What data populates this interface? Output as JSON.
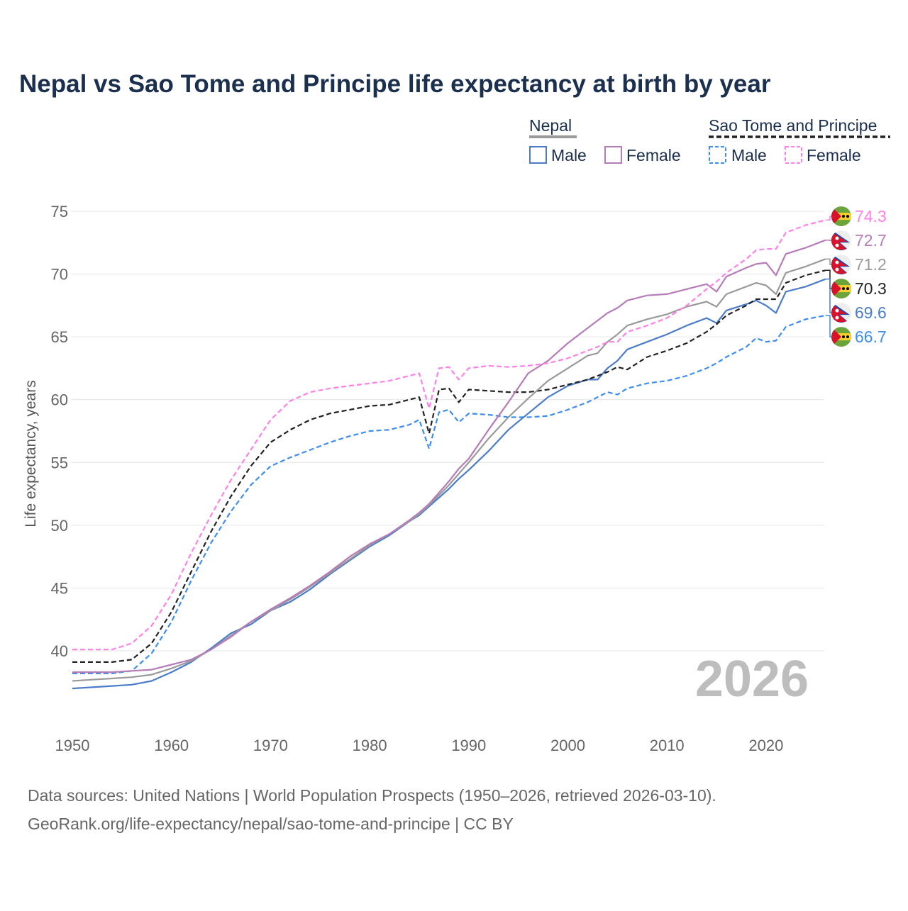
{
  "chart_data": {
    "type": "line",
    "title": "Nepal vs Sao Tome and Principe life expectancy at birth by year",
    "ylabel": "Life expectancy, years",
    "xlabel": "",
    "xlim": [
      1950,
      2026
    ],
    "ylim": [
      35,
      77
    ],
    "x_ticks": [
      1950,
      1960,
      1970,
      1980,
      1990,
      2000,
      2010,
      2020
    ],
    "y_ticks": [
      40,
      45,
      50,
      55,
      60,
      65,
      70,
      75
    ],
    "grid": true,
    "watermark_year": "2026",
    "legend": {
      "placement": "top-right",
      "groups": [
        {
          "name": "Nepal",
          "items": [
            "Male",
            "Female"
          ]
        },
        {
          "name": "Sao Tome and Principe",
          "items": [
            "Male",
            "Female"
          ]
        }
      ]
    },
    "x": [
      1950,
      1952,
      1954,
      1956,
      1958,
      1960,
      1962,
      1964,
      1966,
      1968,
      1970,
      1972,
      1974,
      1976,
      1978,
      1980,
      1982,
      1984,
      1985,
      1986,
      1987,
      1988,
      1989,
      1990,
      1992,
      1994,
      1996,
      1998,
      2000,
      2002,
      2003,
      2004,
      2005,
      2006,
      2008,
      2010,
      2012,
      2014,
      2015,
      2016,
      2018,
      2019,
      2020,
      2021,
      2022,
      2024,
      2026
    ],
    "series": [
      {
        "name": "Sao Tome and Principe Female",
        "country": "stp",
        "color": "#ff80e8",
        "dashed": true,
        "end_label": "74.3",
        "values": [
          40.1,
          40.1,
          40.1,
          40.6,
          42,
          44.5,
          47.8,
          50.8,
          53.6,
          56,
          58.4,
          59.9,
          60.6,
          60.9,
          61.1,
          61.3,
          61.5,
          61.9,
          62.1,
          59.3,
          62.5,
          62.6,
          61.6,
          62.5,
          62.7,
          62.6,
          62.7,
          62.9,
          63.3,
          63.9,
          64.2,
          64.6,
          64.6,
          65.4,
          65.9,
          66.5,
          67.5,
          68.8,
          69.4,
          70.1,
          71.2,
          71.9,
          72,
          72,
          73.3,
          73.9,
          74.3
        ]
      },
      {
        "name": "Nepal Female",
        "country": "nepal",
        "color": "#b57cb8",
        "dashed": false,
        "end_label": "72.7",
        "values": [
          38.3,
          38.3,
          38.3,
          38.4,
          38.5,
          38.9,
          39.3,
          40.1,
          41.1,
          42.3,
          43.3,
          44.2,
          45.2,
          46.3,
          47.5,
          48.5,
          49.3,
          50.4,
          51.0,
          51.7,
          52.6,
          53.5,
          54.5,
          55.3,
          57.6,
          59.8,
          62.1,
          63.1,
          64.5,
          65.7,
          66.3,
          66.9,
          67.3,
          67.9,
          68.3,
          68.4,
          68.8,
          69.2,
          68.6,
          69.8,
          70.5,
          70.8,
          70.9,
          69.9,
          71.6,
          72.1,
          72.7
        ]
      },
      {
        "name": "Nepal",
        "country": "nepal",
        "color": "#9a9a9a",
        "dashed": false,
        "end_label": "71.2",
        "values": [
          37.6,
          37.7,
          37.8,
          37.9,
          38.1,
          38.6,
          39.2,
          40.1,
          41.2,
          42.3,
          43.2,
          44.1,
          45.1,
          46.2,
          47.3,
          48.4,
          49.3,
          50.3,
          50.9,
          51.6,
          52.4,
          53.2,
          54.1,
          55,
          56.9,
          58.6,
          60.1,
          61.5,
          62.5,
          63.5,
          63.7,
          64.6,
          65.2,
          65.9,
          66.4,
          66.8,
          67.4,
          67.8,
          67.4,
          68.4,
          69,
          69.3,
          69.1,
          68.4,
          70.1,
          70.6,
          71.2
        ]
      },
      {
        "name": "Sao Tome and Principe",
        "country": "stp",
        "color": "#222222",
        "dashed": true,
        "end_label": "70.3",
        "values": [
          39.1,
          39.1,
          39.1,
          39.3,
          40.6,
          43.1,
          46.3,
          49.5,
          52.3,
          54.7,
          56.6,
          57.6,
          58.4,
          58.9,
          59.2,
          59.5,
          59.6,
          60.0,
          60.2,
          57.3,
          60.8,
          60.9,
          59.8,
          60.8,
          60.7,
          60.6,
          60.6,
          60.8,
          61.2,
          61.6,
          61.9,
          62.2,
          62.6,
          62.4,
          63.4,
          63.9,
          64.5,
          65.4,
          66,
          66.7,
          67.5,
          68,
          68,
          68,
          69.3,
          69.9,
          70.3
        ]
      },
      {
        "name": "Nepal Male",
        "country": "nepal",
        "color": "#4a7cc9",
        "dashed": false,
        "end_label": "69.6",
        "values": [
          37,
          37.1,
          37.2,
          37.3,
          37.6,
          38.3,
          39.1,
          40.2,
          41.4,
          42.1,
          43.2,
          43.9,
          44.9,
          46.1,
          47.2,
          48.3,
          49.2,
          50.3,
          50.8,
          51.5,
          52.2,
          52.9,
          53.7,
          54.4,
          55.9,
          57.6,
          58.9,
          60.2,
          61.1,
          61.6,
          61.6,
          62.5,
          63.1,
          64.0,
          64.6,
          65.2,
          65.9,
          66.5,
          66.1,
          67.1,
          67.6,
          67.9,
          67.5,
          66.9,
          68.6,
          69.0,
          69.6
        ]
      },
      {
        "name": "Sao Tome and Principe Male",
        "country": "stp",
        "color": "#3d8ef0",
        "dashed": true,
        "end_label": "66.7",
        "values": [
          38.2,
          38.2,
          38.2,
          38.4,
          39.8,
          42.3,
          45.6,
          48.6,
          51.1,
          53.2,
          54.7,
          55.4,
          56,
          56.6,
          57.1,
          57.5,
          57.6,
          58.0,
          58.4,
          56.1,
          59,
          59.2,
          58.2,
          58.9,
          58.8,
          58.6,
          58.6,
          58.7,
          59.2,
          59.8,
          60.2,
          60.6,
          60.4,
          60.9,
          61.3,
          61.5,
          61.9,
          62.5,
          62.9,
          63.4,
          64.2,
          64.9,
          64.6,
          64.7,
          65.8,
          66.4,
          66.7
        ]
      }
    ]
  },
  "source_lines": [
    "Data sources: United Nations | World Population Prospects (1950–2026, retrieved 2026-03-10).",
    "GeoRank.org/life-expectancy/nepal/sao-tome-and-principe | CC BY"
  ]
}
